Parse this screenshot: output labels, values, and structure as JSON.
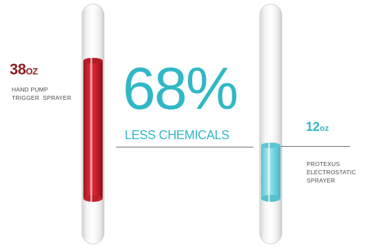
{
  "left": {
    "amount": "38",
    "unit": "OZ",
    "label_line1": "HAND PUMP",
    "label_line2": "TRIGGER  SPRAYER",
    "color": "#8f1d24"
  },
  "center": {
    "percentage": "68%",
    "subtitle": "LESS CHEMICALS",
    "color": "#31b8c6"
  },
  "right": {
    "amount": "12",
    "unit": "oz",
    "label_line1": "PROTEXUS",
    "label_line2": "ELECTROSTATIC",
    "label_line3": "SPRAYER",
    "color": "#31b8c6"
  },
  "tubes": {
    "left_liquid_color": "#d3232f",
    "right_liquid_color": "#6fd2de"
  }
}
